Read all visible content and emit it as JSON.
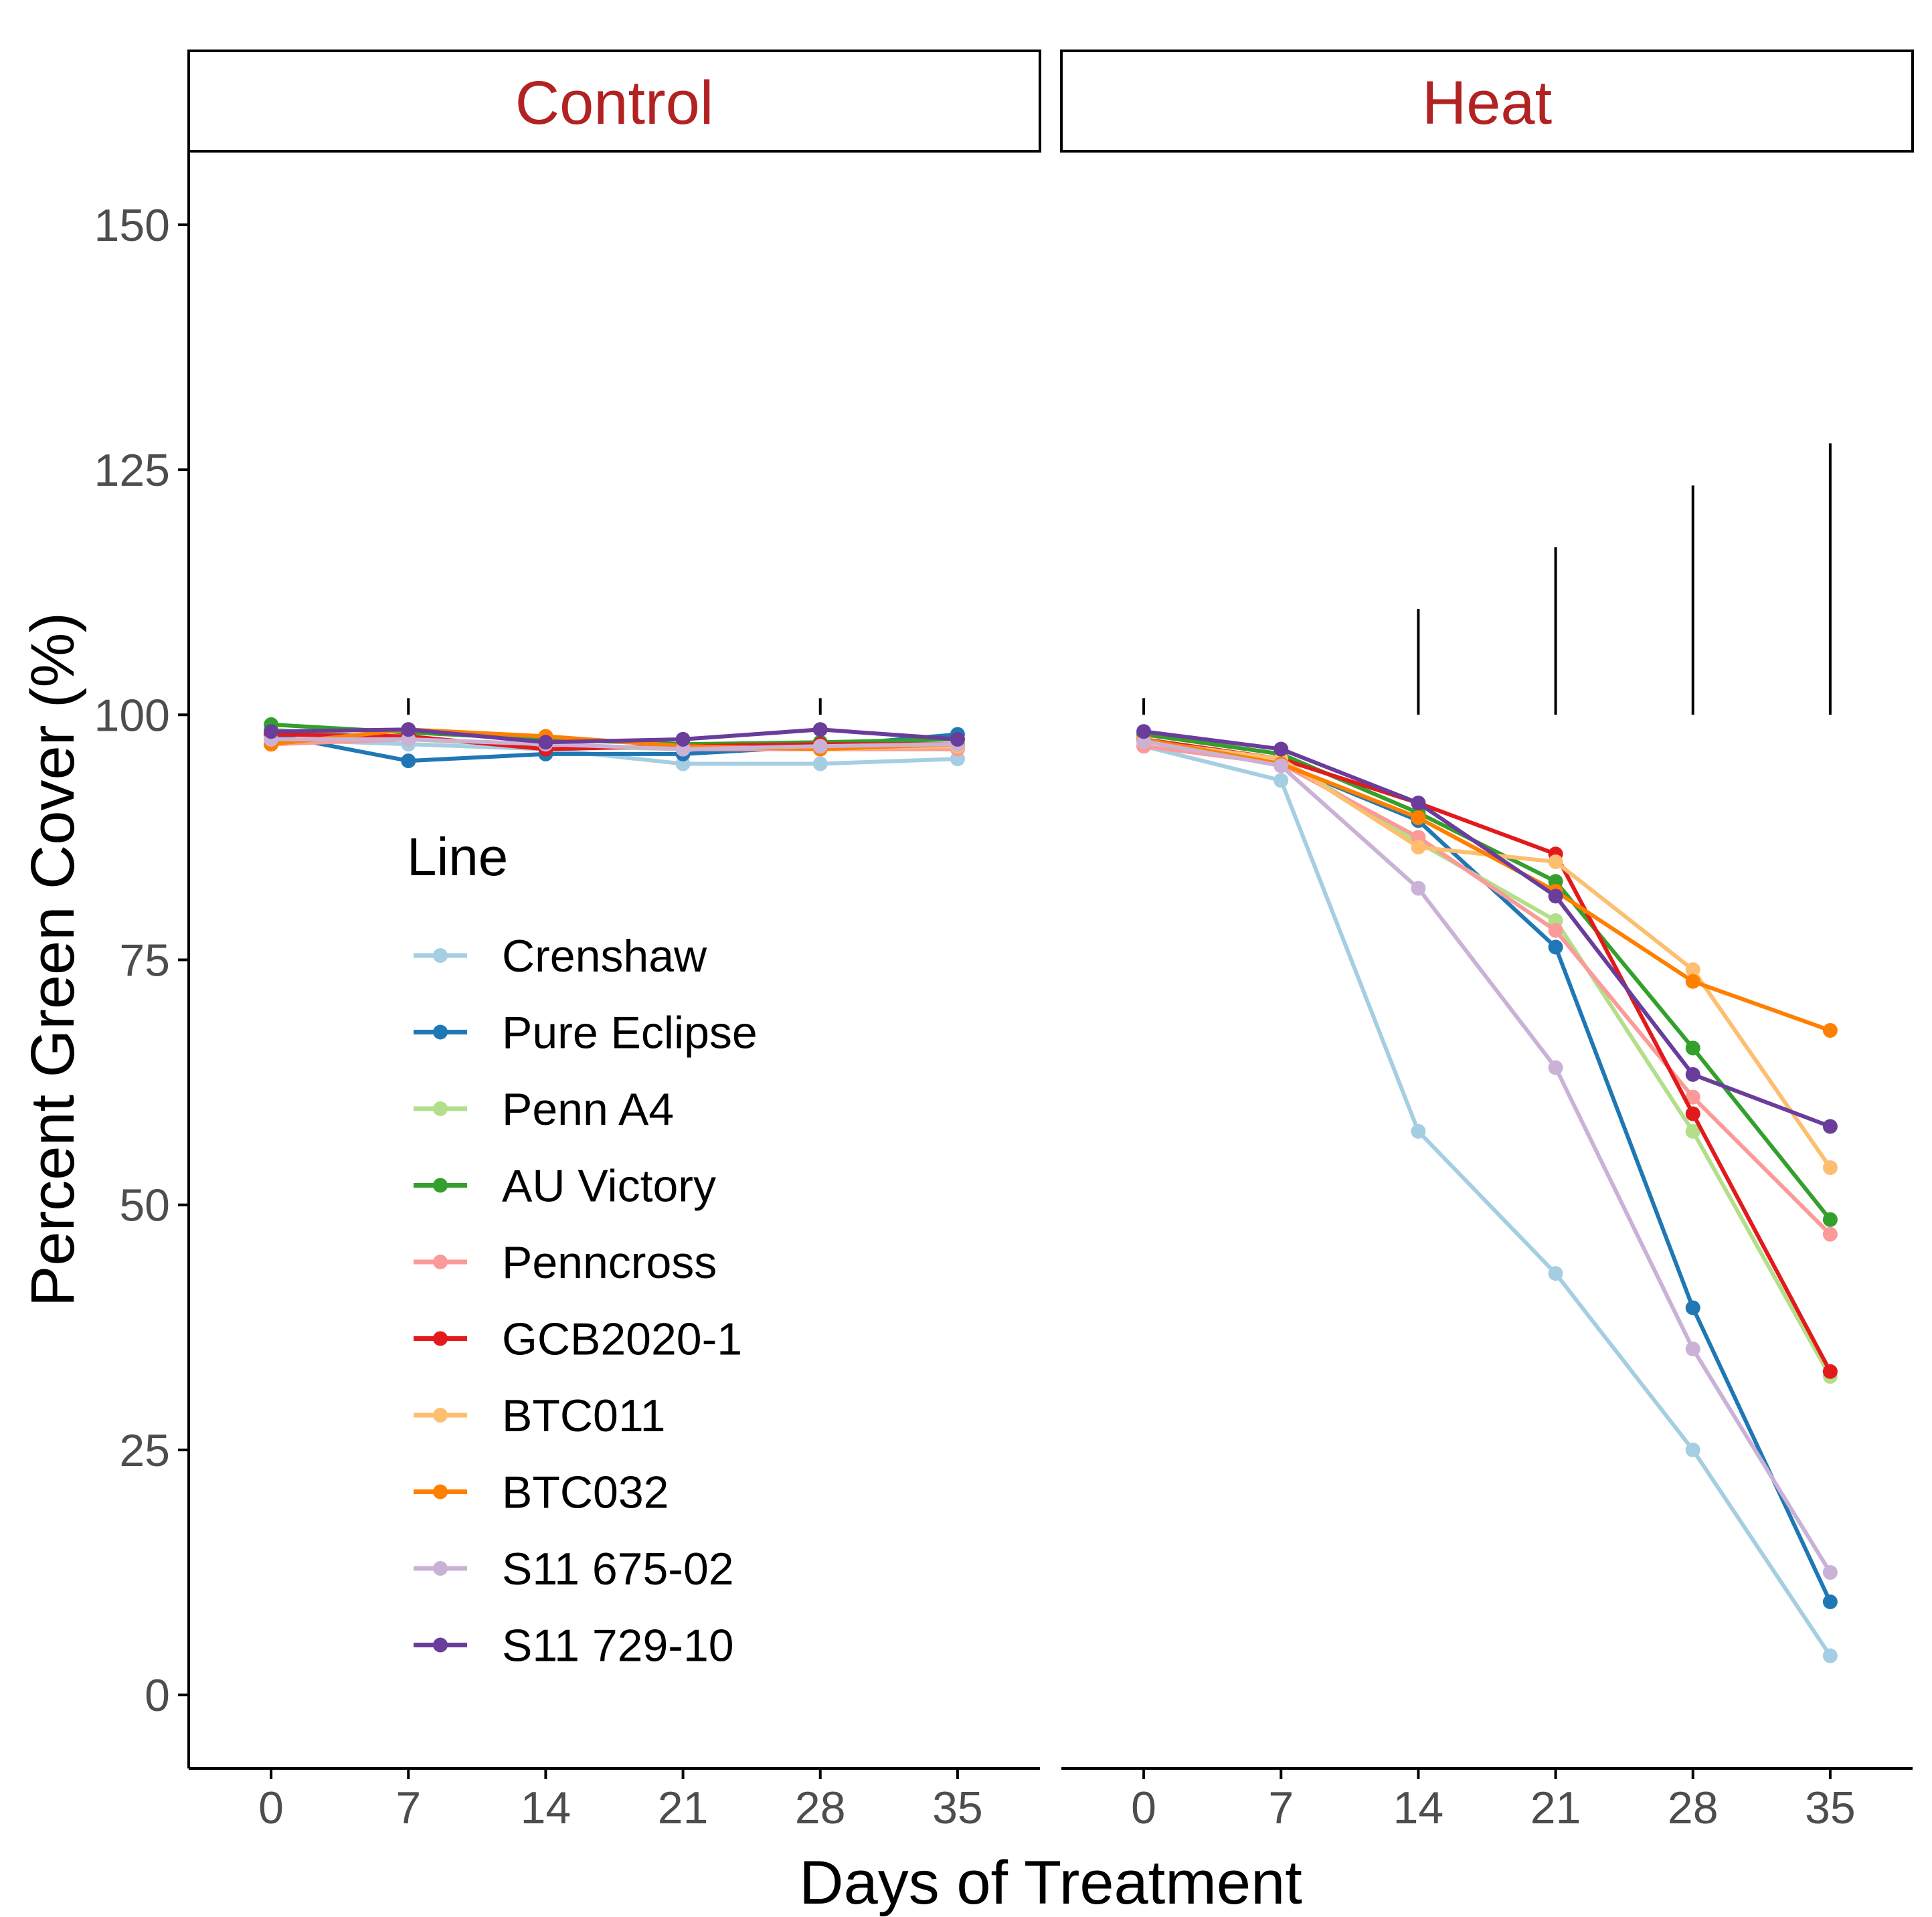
{
  "chart_data": {
    "type": "line",
    "xlabel": "Days of Treatment",
    "ylabel": "Percent Green Cover (%)",
    "x": [
      0,
      7,
      14,
      21,
      28,
      35
    ],
    "x_tick_labels": [
      "0",
      "7",
      "14",
      "21",
      "28",
      "35"
    ],
    "y_ticks": [
      0,
      25,
      50,
      75,
      100,
      125,
      150
    ],
    "y_tick_labels": [
      "0",
      "25",
      "50",
      "75",
      "100",
      "125",
      "150"
    ],
    "xlim": [
      -4.2,
      39.2
    ],
    "ylim": [
      -7.5,
      157.5
    ],
    "legend": {
      "title": "Line",
      "placement": "inside left of Control panel"
    },
    "panels": [
      {
        "label": "Control",
        "series": [
          {
            "name": "Crenshaw",
            "values": [
              97.5,
              97.0,
              96.5,
              95.0,
              95.0,
              95.5
            ]
          },
          {
            "name": "Pure Eclipse",
            "values": [
              98.0,
              95.3,
              96.0,
              96.0,
              96.8,
              98.0
            ]
          },
          {
            "name": "Penn A4",
            "values": [
              98.5,
              97.5,
              96.8,
              96.5,
              96.5,
              96.5
            ]
          },
          {
            "name": "AU Victory",
            "values": [
              99.0,
              98.2,
              97.5,
              97.0,
              97.2,
              97.5
            ]
          },
          {
            "name": "Penncross",
            "values": [
              97.0,
              97.5,
              97.0,
              96.5,
              96.5,
              96.5
            ]
          },
          {
            "name": "GCB2020-1",
            "values": [
              98.0,
              97.8,
              96.5,
              96.8,
              97.0,
              97.0
            ]
          },
          {
            "name": "BTC011",
            "values": [
              97.0,
              98.5,
              97.8,
              96.8,
              96.5,
              96.8
            ]
          },
          {
            "name": "BTC032",
            "values": [
              97.0,
              98.5,
              97.8,
              96.8,
              96.5,
              97.0
            ]
          },
          {
            "name": "S11 675-02",
            "values": [
              97.5,
              97.5,
              97.0,
              96.5,
              96.8,
              97.0
            ]
          },
          {
            "name": "S11 729-10",
            "values": [
              98.3,
              98.5,
              97.2,
              97.5,
              98.5,
              97.5
            ]
          }
        ],
        "significance_marks": [
          {
            "x": 7,
            "top": 101.7
          },
          {
            "x": 28,
            "top": 101.7
          }
        ]
      },
      {
        "label": "Heat",
        "series": [
          {
            "name": "Crenshaw",
            "values": [
              96.8,
              93.3,
              57.5,
              43.0,
              25.0,
              4.0
            ]
          },
          {
            "name": "Pure Eclipse",
            "values": [
              97.3,
              95.0,
              89.2,
              76.3,
              39.5,
              9.5
            ]
          },
          {
            "name": "Penn A4",
            "values": [
              97.3,
              95.5,
              87.0,
              79.0,
              57.5,
              32.5
            ]
          },
          {
            "name": "AU Victory",
            "values": [
              98.0,
              96.0,
              90.0,
              83.0,
              66.0,
              48.5
            ]
          },
          {
            "name": "Penncross",
            "values": [
              96.8,
              95.0,
              87.5,
              78.0,
              61.0,
              47.0
            ]
          },
          {
            "name": "GCB2020-1",
            "values": [
              97.5,
              95.5,
              91.0,
              85.8,
              59.3,
              33.0
            ]
          },
          {
            "name": "BTC011",
            "values": [
              97.3,
              95.5,
              86.5,
              85.0,
              74.0,
              53.8
            ]
          },
          {
            "name": "BTC032",
            "values": [
              97.5,
              95.0,
              89.5,
              82.0,
              72.8,
              67.8
            ]
          },
          {
            "name": "S11 675-02",
            "values": [
              97.3,
              94.8,
              82.3,
              64.0,
              35.3,
              12.5
            ]
          },
          {
            "name": "S11 729-10",
            "values": [
              98.3,
              96.5,
              91.0,
              81.5,
              63.3,
              58.0
            ]
          }
        ],
        "significance_marks": [
          {
            "x": 0,
            "top": 101.7
          },
          {
            "x": 14,
            "top": 110.8
          },
          {
            "x": 21,
            "top": 117.1
          },
          {
            "x": 28,
            "top": 123.4
          },
          {
            "x": 35,
            "top": 127.7
          }
        ]
      }
    ]
  },
  "colors": {
    "Crenshaw": "#a6cee3",
    "Pure Eclipse": "#1f78b4",
    "Penn A4": "#b2df8a",
    "AU Victory": "#33a02c",
    "Penncross": "#fb9a99",
    "GCB2020-1": "#e31a1c",
    "BTC011": "#fdbf6f",
    "BTC032": "#ff7f00",
    "S11 675-02": "#cab2d6",
    "S11 729-10": "#6a3d9a",
    "strip_text": "#b22222",
    "axis": "#000000",
    "tick_label": "#4d4d4d"
  }
}
